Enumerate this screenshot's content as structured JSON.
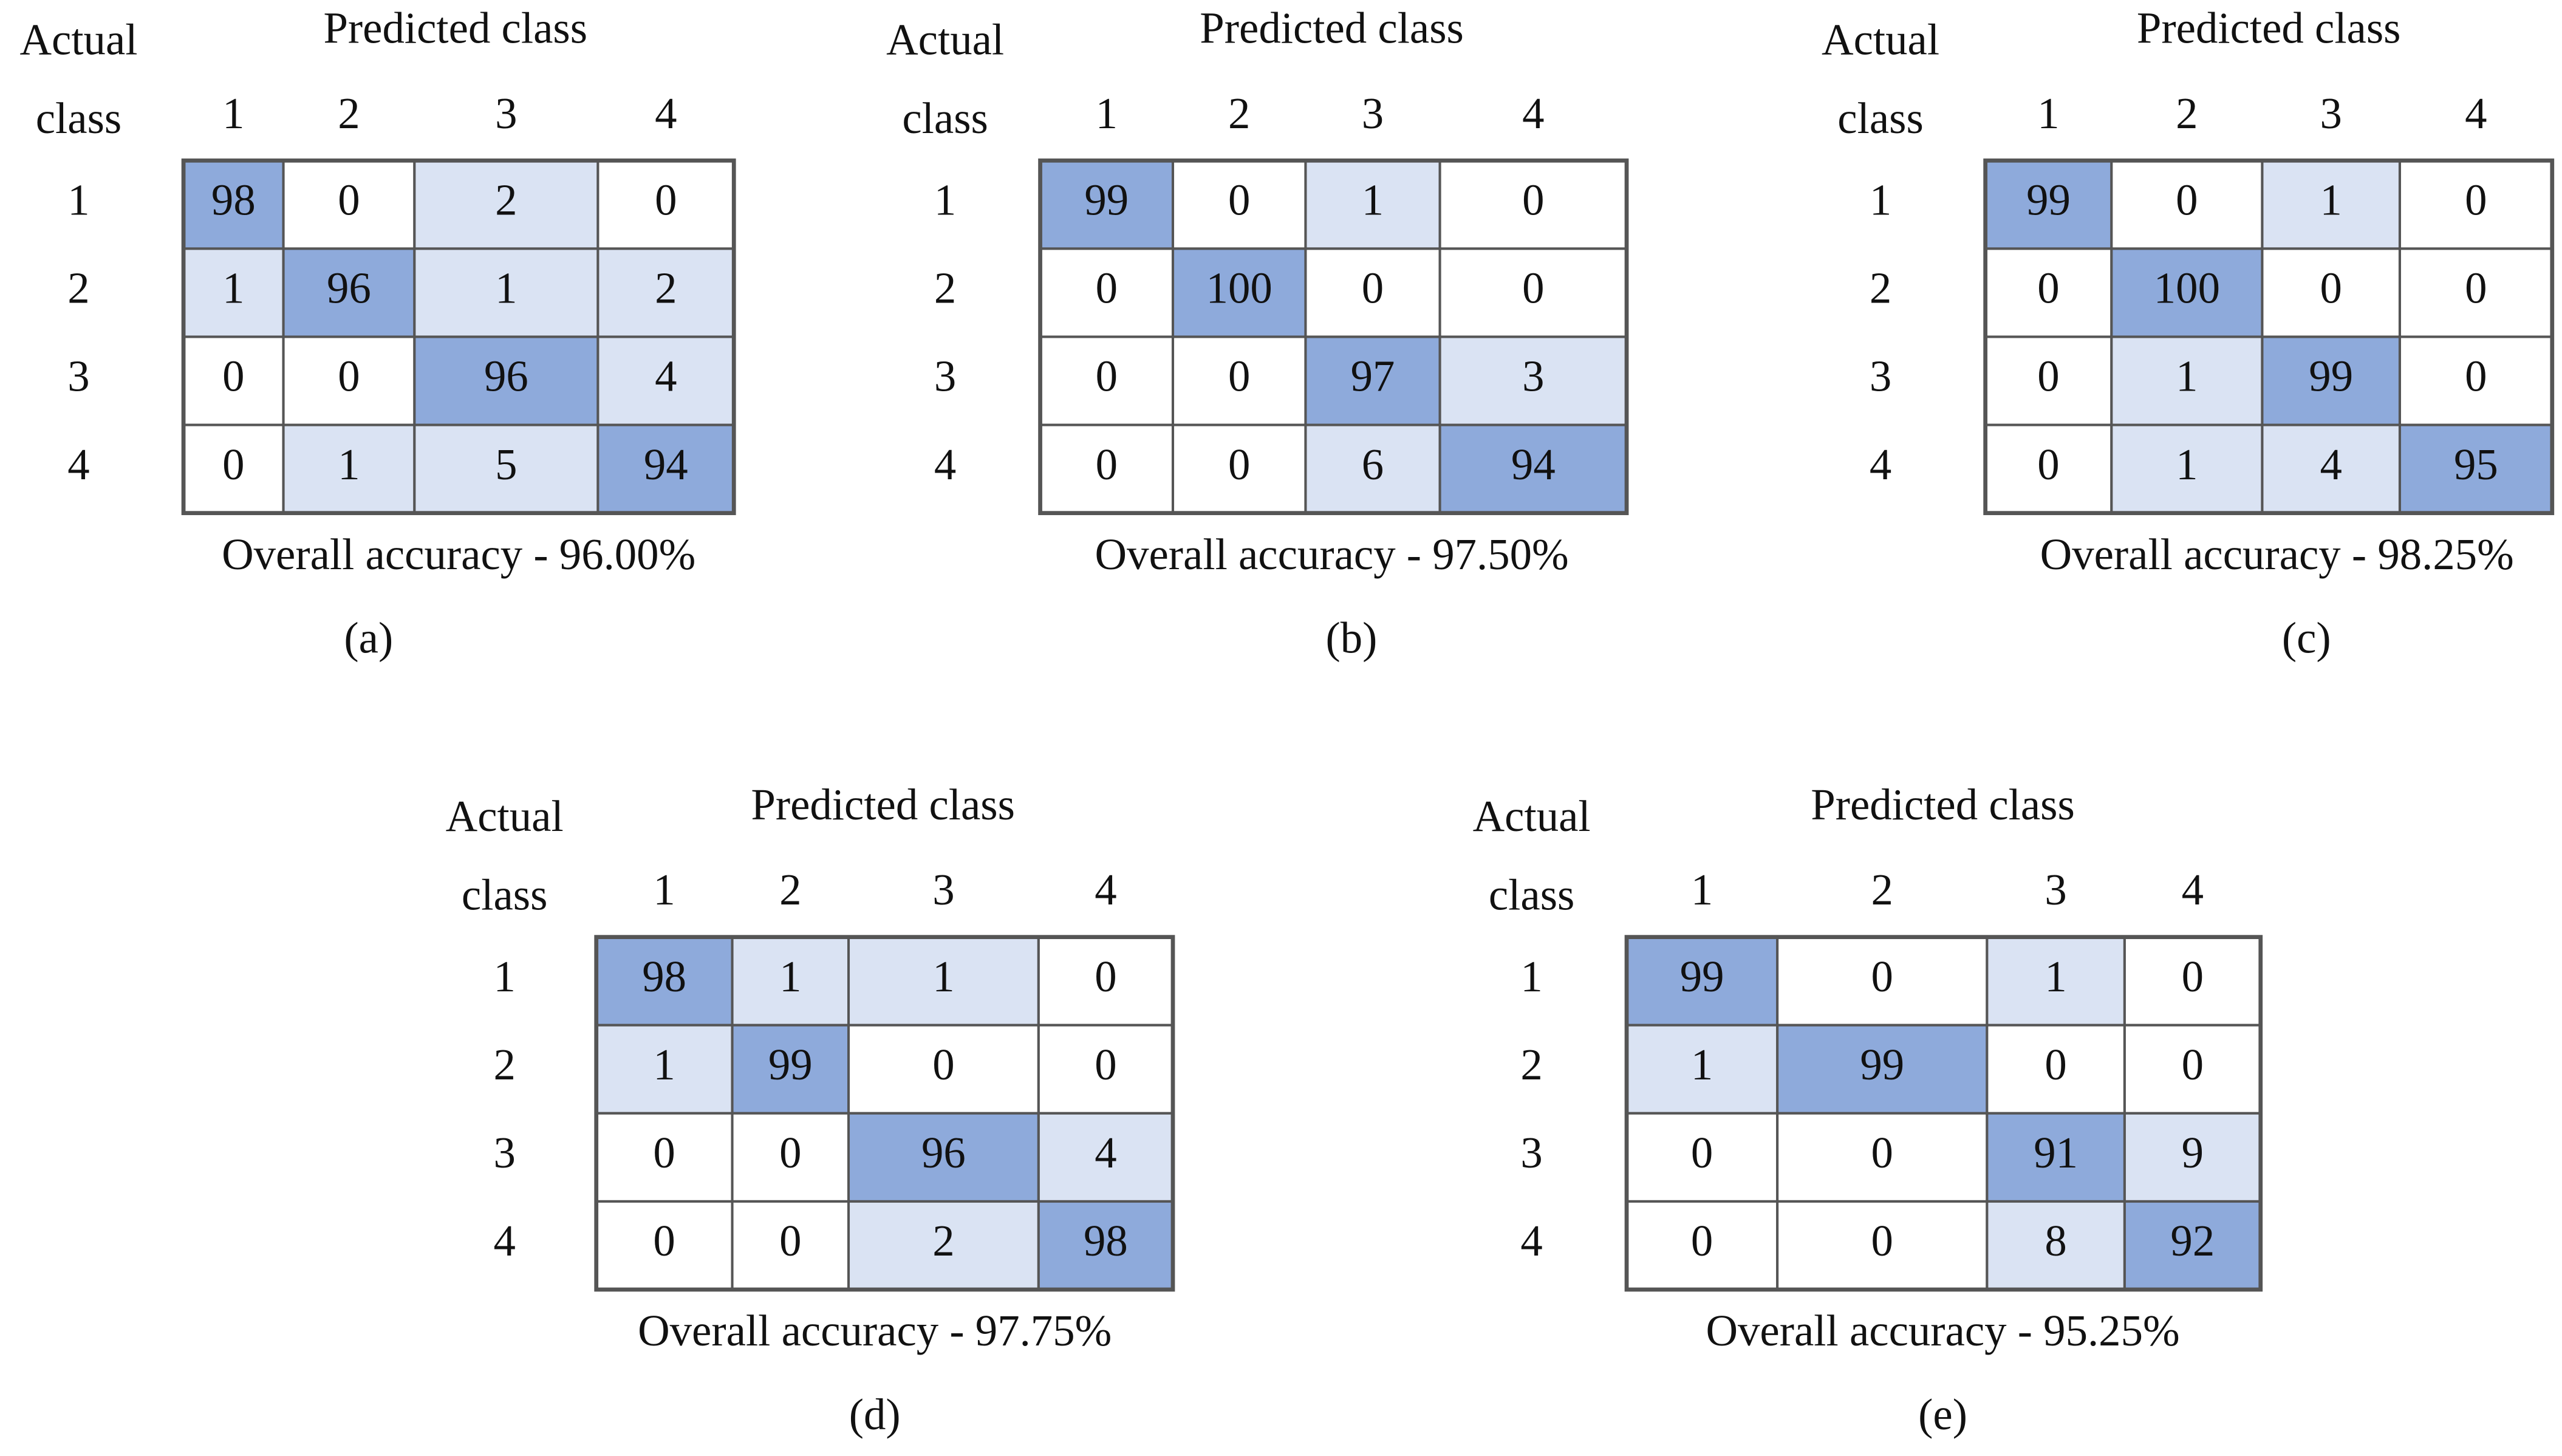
{
  "panels": [
    {
      "row_header": [
        "Actual",
        "class"
      ],
      "column_header": "Predicted class",
      "column_labels": [
        "1",
        "2",
        "3",
        "4"
      ],
      "row_labels": [
        "1",
        "2",
        "3",
        "4"
      ],
      "cells": [
        [
          98,
          0,
          2,
          0
        ],
        [
          1,
          96,
          1,
          2
        ],
        [
          0,
          0,
          96,
          4
        ],
        [
          0,
          1,
          5,
          94
        ]
      ],
      "accuracy": "Overall accuracy - 96.00%",
      "caption": "(a)"
    },
    {
      "row_header": [
        "Actual",
        "class"
      ],
      "column_header": "Predicted class",
      "column_labels": [
        "1",
        "2",
        "3",
        "4"
      ],
      "row_labels": [
        "1",
        "2",
        "3",
        "4"
      ],
      "cells": [
        [
          99,
          0,
          1,
          0
        ],
        [
          0,
          100,
          0,
          0
        ],
        [
          0,
          0,
          97,
          3
        ],
        [
          0,
          0,
          6,
          94
        ]
      ],
      "accuracy": "Overall accuracy - 97.50%",
      "caption": "(b)"
    },
    {
      "row_header": [
        "Actual",
        "class"
      ],
      "column_header": "Predicted class",
      "column_labels": [
        "1",
        "2",
        "3",
        "4"
      ],
      "row_labels": [
        "1",
        "2",
        "3",
        "4"
      ],
      "cells": [
        [
          99,
          0,
          1,
          0
        ],
        [
          0,
          100,
          0,
          0
        ],
        [
          0,
          1,
          99,
          0
        ],
        [
          0,
          1,
          4,
          95
        ]
      ],
      "accuracy": "Overall accuracy - 98.25%",
      "caption": "(c)"
    },
    {
      "row_header": [
        "Actual",
        "class"
      ],
      "column_header": "Predicted class",
      "column_labels": [
        "1",
        "2",
        "3",
        "4"
      ],
      "row_labels": [
        "1",
        "2",
        "3",
        "4"
      ],
      "cells": [
        [
          98,
          1,
          1,
          0
        ],
        [
          1,
          99,
          0,
          0
        ],
        [
          0,
          0,
          96,
          4
        ],
        [
          0,
          0,
          2,
          98
        ]
      ],
      "accuracy": "Overall accuracy - 97.75%",
      "caption": "(d)"
    },
    {
      "row_header": [
        "Actual",
        "class"
      ],
      "column_header": "Predicted class",
      "column_labels": [
        "1",
        "2",
        "3",
        "4"
      ],
      "row_labels": [
        "1",
        "2",
        "3",
        "4"
      ],
      "cells": [
        [
          99,
          0,
          1,
          0
        ],
        [
          1,
          99,
          0,
          0
        ],
        [
          0,
          0,
          91,
          9
        ],
        [
          0,
          0,
          8,
          92
        ]
      ],
      "accuracy": "Overall accuracy - 95.25%",
      "caption": "(e)"
    }
  ]
}
